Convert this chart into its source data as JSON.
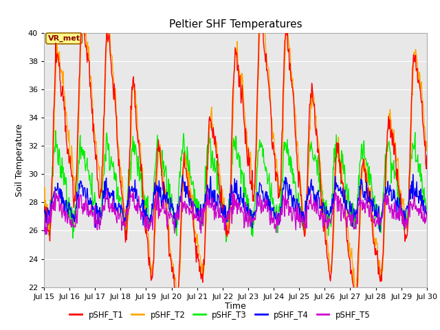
{
  "title": "Peltier SHF Temperatures",
  "xlabel": "Time",
  "ylabel": "Soil Temperature",
  "ylim": [
    22,
    40
  ],
  "yticks": [
    22,
    24,
    26,
    28,
    30,
    32,
    34,
    36,
    38,
    40
  ],
  "annotation": "VR_met",
  "series_colors": {
    "pSHF_T1": "#ff0000",
    "pSHF_T2": "#ffa500",
    "pSHF_T3": "#00ee00",
    "pSHF_T4": "#0000ff",
    "pSHF_T5": "#cc00cc"
  },
  "bg_color": "#e8e8e8",
  "fig_bg": "#ffffff",
  "n_days": 15,
  "start_day": 15,
  "pts_per_day": 48
}
